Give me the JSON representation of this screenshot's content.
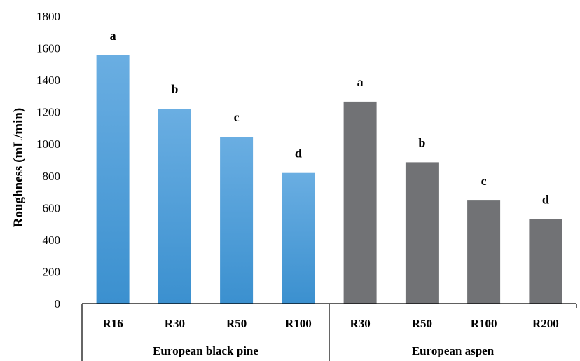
{
  "chart_data": {
    "type": "bar",
    "ylabel": "Roughness (mL/min)",
    "ylim": [
      0,
      1800
    ],
    "yticks": [
      0,
      200,
      400,
      600,
      800,
      1000,
      1200,
      1400,
      1600,
      1800
    ],
    "grid": false,
    "groups": [
      {
        "name": "European black pine",
        "color": "#4f9fdb",
        "categories": [
          "R16",
          "R30",
          "R50",
          "R100"
        ],
        "values": [
          1555,
          1220,
          1045,
          818
        ],
        "letters": [
          "a",
          "b",
          "c",
          "d"
        ]
      },
      {
        "name": "European aspen",
        "color": "#717275",
        "categories": [
          "R30",
          "R50",
          "R100",
          "R200"
        ],
        "values": [
          1265,
          885,
          645,
          528
        ],
        "letters": [
          "a",
          "b",
          "c",
          "d"
        ]
      }
    ]
  }
}
